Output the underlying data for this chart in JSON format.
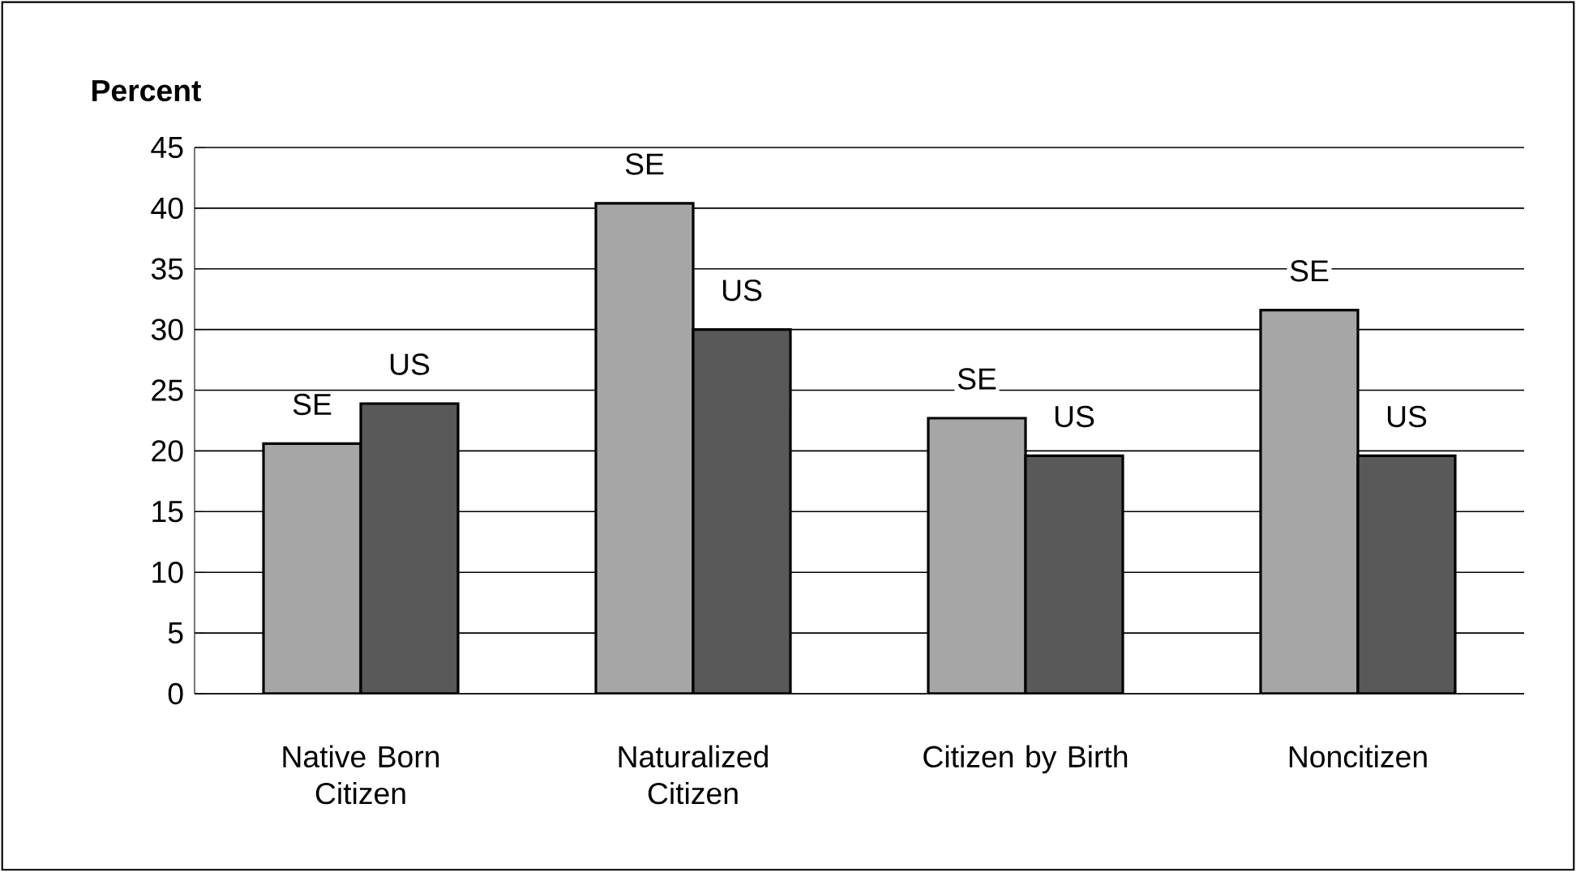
{
  "chart_data": {
    "type": "bar",
    "ylabel": "Percent",
    "categories": [
      "Native Born Citizen",
      "Naturalized Citizen",
      "Citizen by Birth",
      "Noncitizen"
    ],
    "series": [
      {
        "name": "SE",
        "color": "#a6a6a6",
        "values": [
          20.6,
          40.4,
          22.7,
          31.6
        ]
      },
      {
        "name": "US",
        "color": "#595959",
        "values": [
          23.9,
          30.0,
          19.6,
          19.6
        ]
      }
    ],
    "ylim": [
      0,
      45
    ],
    "yticks": [
      0,
      5,
      10,
      15,
      20,
      25,
      30,
      35,
      40,
      45
    ],
    "grid": "y"
  }
}
